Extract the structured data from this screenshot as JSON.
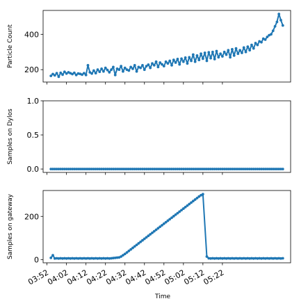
{
  "chart_data": [
    {
      "type": "line",
      "xlabel": "",
      "ylabel": "Particle Count",
      "ylim": [
        130,
        535
      ],
      "yticks": [
        200,
        400
      ],
      "color": "#1f77b4",
      "marker": "circle",
      "x_start_min": 0,
      "x_step_min": 1,
      "values": [
        165,
        175,
        168,
        180,
        160,
        182,
        172,
        188,
        178,
        185,
        180,
        175,
        182,
        170,
        178,
        176,
        172,
        180,
        170,
        225,
        185,
        178,
        195,
        180,
        200,
        188,
        205,
        190,
        210,
        198,
        185,
        200,
        215,
        170,
        205,
        200,
        220,
        190,
        210,
        200,
        195,
        215,
        205,
        225,
        190,
        215,
        210,
        225,
        200,
        220,
        228,
        210,
        235,
        225,
        245,
        215,
        240,
        230,
        220,
        245,
        235,
        250,
        225,
        255,
        240,
        260,
        230,
        262,
        245,
        268,
        235,
        270,
        250,
        285,
        245,
        280,
        255,
        290,
        262,
        295,
        250,
        298,
        265,
        300,
        260,
        305,
        270,
        290,
        275,
        300,
        285,
        310,
        270,
        315,
        280,
        320,
        290,
        310,
        295,
        325,
        300,
        330,
        310,
        340,
        320,
        350,
        340,
        360,
        355,
        375,
        370,
        385,
        395,
        400,
        420,
        445,
        470,
        515,
        480,
        450
      ]
    },
    {
      "type": "line",
      "xlabel": "",
      "ylabel": "Samples on Dylos",
      "ylim": [
        -0.05,
        1.0
      ],
      "yticks": [
        0.0,
        0.5,
        1.0
      ],
      "ytick_labels": [
        "0.0",
        "0.5",
        "1.0"
      ],
      "color": "#1f77b4",
      "marker": "circle",
      "x_start_min": 0,
      "x_step_min": 1,
      "constant_value": 0,
      "count": 120
    },
    {
      "type": "line",
      "xlabel": "Time",
      "ylabel": "Samples on gateway",
      "ylim": [
        -15,
        320
      ],
      "yticks": [
        0,
        200
      ],
      "color": "#1f77b4",
      "marker": "circle",
      "points": [
        [
          0,
          8
        ],
        [
          1,
          20
        ],
        [
          2,
          5
        ],
        [
          3,
          6
        ],
        [
          4,
          5
        ],
        [
          5,
          6
        ],
        [
          6,
          5
        ],
        [
          7,
          6
        ],
        [
          8,
          5
        ],
        [
          9,
          6
        ],
        [
          10,
          5
        ],
        [
          11,
          6
        ],
        [
          12,
          5
        ],
        [
          13,
          6
        ],
        [
          14,
          5
        ],
        [
          15,
          6
        ],
        [
          16,
          5
        ],
        [
          17,
          6
        ],
        [
          18,
          5
        ],
        [
          19,
          6
        ],
        [
          20,
          5
        ],
        [
          21,
          6
        ],
        [
          22,
          5
        ],
        [
          23,
          6
        ],
        [
          24,
          5
        ],
        [
          25,
          6
        ],
        [
          26,
          5
        ],
        [
          27,
          6
        ],
        [
          28,
          5
        ],
        [
          29,
          6
        ],
        [
          30,
          5
        ],
        [
          31,
          6
        ],
        [
          32,
          7
        ],
        [
          33,
          8
        ],
        [
          34,
          9
        ],
        [
          35,
          10
        ],
        [
          36,
          14
        ],
        [
          37,
          20
        ],
        [
          38,
          26
        ],
        [
          39,
          33
        ],
        [
          40,
          40
        ],
        [
          41,
          47
        ],
        [
          42,
          54
        ],
        [
          43,
          61
        ],
        [
          44,
          68
        ],
        [
          45,
          75
        ],
        [
          46,
          82
        ],
        [
          47,
          89
        ],
        [
          48,
          96
        ],
        [
          49,
          103
        ],
        [
          50,
          110
        ],
        [
          51,
          117
        ],
        [
          52,
          124
        ],
        [
          53,
          131
        ],
        [
          54,
          138
        ],
        [
          55,
          145
        ],
        [
          56,
          152
        ],
        [
          57,
          159
        ],
        [
          58,
          166
        ],
        [
          59,
          173
        ],
        [
          60,
          180
        ],
        [
          61,
          187
        ],
        [
          62,
          194
        ],
        [
          63,
          201
        ],
        [
          64,
          208
        ],
        [
          65,
          215
        ],
        [
          66,
          222
        ],
        [
          67,
          229
        ],
        [
          68,
          236
        ],
        [
          69,
          243
        ],
        [
          70,
          250
        ],
        [
          71,
          257
        ],
        [
          72,
          264
        ],
        [
          73,
          271
        ],
        [
          74,
          278
        ],
        [
          75,
          285
        ],
        [
          76,
          292
        ],
        [
          77,
          298
        ],
        [
          78,
          303
        ],
        [
          80,
          14
        ],
        [
          81,
          6
        ],
        [
          82,
          5
        ],
        [
          83,
          6
        ],
        [
          84,
          5
        ],
        [
          85,
          6
        ],
        [
          86,
          5
        ],
        [
          87,
          6
        ],
        [
          88,
          5
        ],
        [
          89,
          6
        ],
        [
          90,
          5
        ],
        [
          91,
          6
        ],
        [
          92,
          5
        ],
        [
          93,
          6
        ],
        [
          94,
          5
        ],
        [
          95,
          6
        ],
        [
          96,
          5
        ],
        [
          97,
          6
        ],
        [
          98,
          5
        ],
        [
          99,
          6
        ],
        [
          100,
          5
        ],
        [
          101,
          6
        ],
        [
          102,
          5
        ],
        [
          103,
          6
        ],
        [
          104,
          5
        ],
        [
          105,
          6
        ],
        [
          106,
          5
        ],
        [
          107,
          6
        ],
        [
          108,
          5
        ],
        [
          109,
          6
        ],
        [
          110,
          5
        ],
        [
          111,
          6
        ],
        [
          112,
          5
        ],
        [
          113,
          6
        ],
        [
          114,
          5
        ],
        [
          115,
          6
        ],
        [
          116,
          5
        ],
        [
          117,
          6
        ],
        [
          118,
          5
        ],
        [
          119,
          6
        ]
      ],
      "xticks": [
        "03:52",
        "04:02",
        "04:12",
        "04:22",
        "04:32",
        "04:42",
        "04:52",
        "05:02",
        "05:12",
        "05:22"
      ],
      "xtick_minutes": [
        -2,
        8,
        18,
        28,
        38,
        48,
        58,
        68,
        78,
        88
      ]
    }
  ]
}
